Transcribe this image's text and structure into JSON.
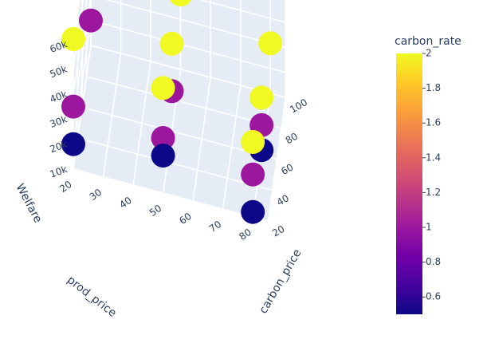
{
  "chart_data": {
    "type": "scatter3d",
    "axes": {
      "x": {
        "label": "carbon_price",
        "ticks": [
          20,
          40,
          60,
          80,
          100
        ]
      },
      "y": {
        "label": "prod_price",
        "ticks": [
          20,
          30,
          40,
          50,
          60,
          70,
          80
        ]
      },
      "z": {
        "label": "Welfare",
        "ticks": [
          "10k",
          "20k",
          "30k",
          "40k",
          "50k",
          "60k"
        ]
      }
    },
    "colorbar": {
      "title": "carbon_rate",
      "ticks": [
        "0.6",
        "0.8",
        "1",
        "1.2",
        "1.4",
        "1.6",
        "1.8",
        "2"
      ],
      "range": [
        0.5,
        2
      ],
      "colorscale": [
        "#0d0887",
        "#46039f",
        "#7201a8",
        "#9c179e",
        "#bd3786",
        "#d8576b",
        "#ed7953",
        "#fb9f3a",
        "#fdca26",
        "#f0f921"
      ]
    },
    "points": [
      {
        "carbon_price": 20,
        "prod_price": 20,
        "welfare": 62000,
        "carbon_rate": 2
      },
      {
        "carbon_price": 20,
        "prod_price": 50,
        "welfare": 52000,
        "carbon_rate": 2
      },
      {
        "carbon_price": 20,
        "prod_price": 80,
        "welfare": 40000,
        "carbon_rate": 2
      },
      {
        "carbon_price": 60,
        "prod_price": 50,
        "welfare": 45000,
        "carbon_rate": 2
      },
      {
        "carbon_price": 60,
        "prod_price": 80,
        "welfare": 33000,
        "carbon_rate": 2
      },
      {
        "carbon_price": 100,
        "prod_price": 20,
        "welfare": 48000,
        "carbon_rate": 2
      },
      {
        "carbon_price": 100,
        "prod_price": 50,
        "welfare": 40000,
        "carbon_rate": 2
      },
      {
        "carbon_price": 100,
        "prod_price": 80,
        "welfare": 30000,
        "carbon_rate": 2
      },
      {
        "carbon_price": 20,
        "prod_price": 20,
        "welfare": 35000,
        "carbon_rate": 1
      },
      {
        "carbon_price": 20,
        "prod_price": 50,
        "welfare": 32000,
        "carbon_rate": 1
      },
      {
        "carbon_price": 20,
        "prod_price": 80,
        "welfare": 27000,
        "carbon_rate": 1
      },
      {
        "carbon_price": 60,
        "prod_price": 50,
        "welfare": 26000,
        "carbon_rate": 1
      },
      {
        "carbon_price": 60,
        "prod_price": 80,
        "welfare": 22000,
        "carbon_rate": 1
      },
      {
        "carbon_price": 100,
        "prod_price": 20,
        "welfare": 20000,
        "carbon_rate": 1
      },
      {
        "carbon_price": 20,
        "prod_price": 20,
        "welfare": 20000,
        "carbon_rate": 0.5
      },
      {
        "carbon_price": 20,
        "prod_price": 50,
        "welfare": 25000,
        "carbon_rate": 0.5
      },
      {
        "carbon_price": 20,
        "prod_price": 80,
        "welfare": 12000,
        "carbon_rate": 0.5
      },
      {
        "carbon_price": 60,
        "prod_price": 80,
        "welfare": 12000,
        "carbon_rate": 0.5
      }
    ]
  }
}
